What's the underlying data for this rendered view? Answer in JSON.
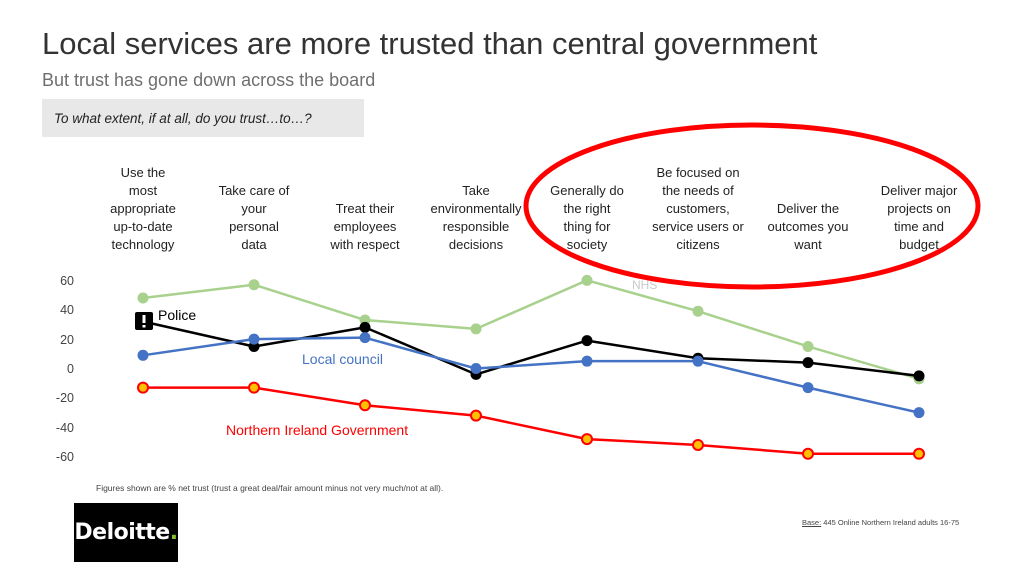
{
  "title": "Local services are more trusted than central government",
  "subtitle": "But trust has gone down across the board",
  "question": "To what extent, if at all, do you trust…to…?",
  "footnote": "Figures shown are % net trust (trust a great deal/fair amount minus not very much/not at all).",
  "base": {
    "label": "Base:",
    "text": " 445 Online Northern Ireland adults 16-75"
  },
  "logo": {
    "text": "Deloitte",
    "dot": "."
  },
  "colors": {
    "nhs": "#a9d18e",
    "police": "#000000",
    "local_council": "#4472c4",
    "ni_government": "#ff0000",
    "highlight": "#ff0000"
  },
  "chart_data": {
    "type": "line",
    "categories": [
      "Use  the most appropriate up-to-date technology",
      "Take care of your personal data",
      "Treat their employees with respect",
      "Take environmentally responsible decisions",
      "Generally do the right thing for society",
      "Be focused on the needs of customers, service users or citizens",
      "Deliver the outcomes you want",
      "Deliver major projects on time and budget"
    ],
    "category_lines": [
      [
        "Use  the",
        "most",
        "appropriate",
        "up-to-date",
        "technology"
      ],
      [
        "Take care of",
        "your",
        "personal",
        "data"
      ],
      [
        "Treat their",
        "employees",
        "with respect"
      ],
      [
        "Take",
        "environmentally",
        "responsible",
        "decisions"
      ],
      [
        "Generally do",
        "the right",
        "thing for",
        "society"
      ],
      [
        "Be focused on",
        "the needs of",
        "customers,",
        "service users or",
        "citizens"
      ],
      [
        "Deliver the",
        "outcomes you",
        "want"
      ],
      [
        "Deliver major",
        "projects on",
        "time and",
        "budget"
      ]
    ],
    "yticks": [
      60,
      40,
      20,
      0,
      -20,
      -40,
      -60
    ],
    "ylim": [
      -60,
      60
    ],
    "series": [
      {
        "name": "NHS",
        "color": "#a9d18e",
        "values": [
          49,
          58,
          34,
          28,
          61,
          40,
          16,
          -6
        ]
      },
      {
        "name": "Police",
        "color": "#000000",
        "values": [
          33,
          16,
          29,
          -3,
          20,
          8,
          5,
          -4
        ]
      },
      {
        "name": "Local council",
        "color": "#4472c4",
        "values": [
          10,
          21,
          22,
          1,
          6,
          6,
          -12,
          -29
        ]
      },
      {
        "name": "Northern Ireland Government",
        "color": "#ff0000",
        "values": [
          -12,
          -12,
          -24,
          -31,
          -47,
          -51,
          -57,
          -57
        ]
      }
    ],
    "grid": false,
    "legend": "inline labels"
  }
}
